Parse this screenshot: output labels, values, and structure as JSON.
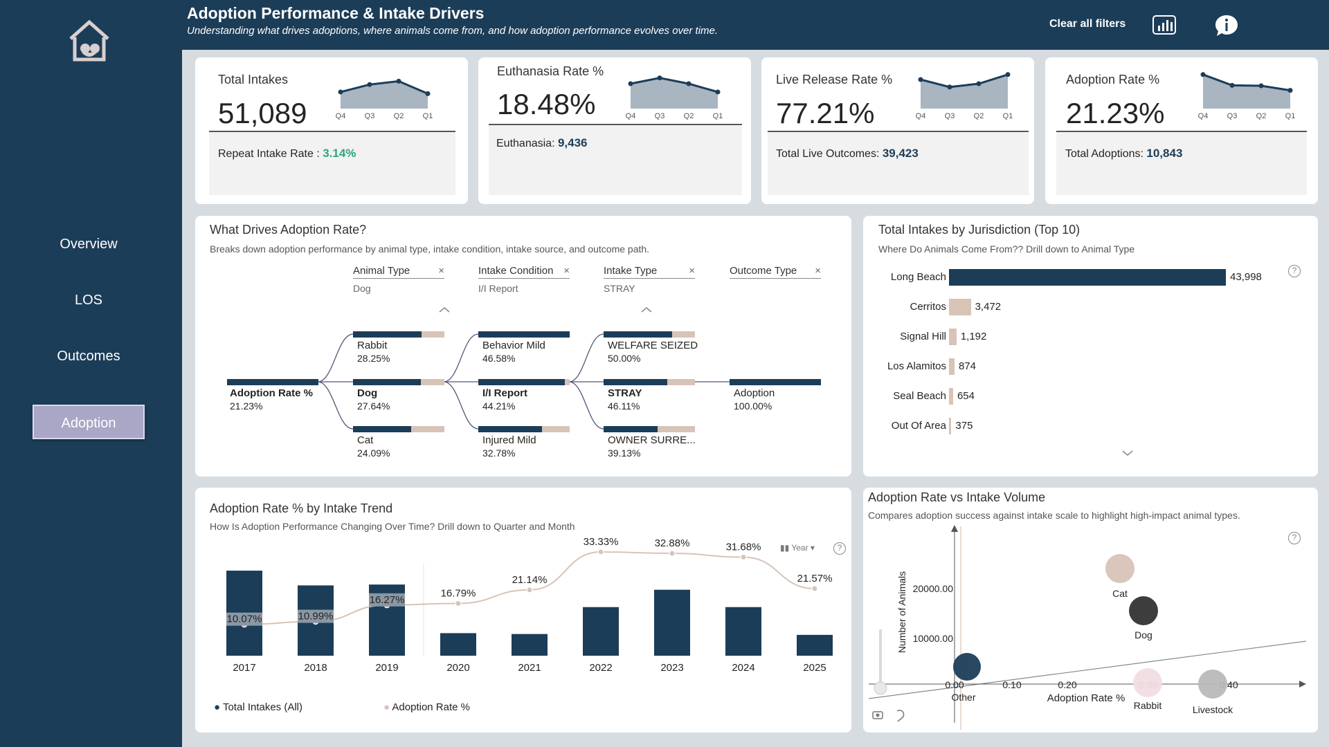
{
  "sidebar": {
    "items": [
      {
        "label": "Overview"
      },
      {
        "label": "LOS"
      },
      {
        "label": "Outcomes"
      },
      {
        "label": "Adoption"
      }
    ]
  },
  "header": {
    "title": "Adoption Performance & Intake Drivers",
    "subtitle": "Understanding what drives adoptions, where animals come from, and how adoption performance evolves over time.",
    "clear_filters": "Clear all filters"
  },
  "kpis": [
    {
      "label": "Total Intakes",
      "value": "51,089",
      "foot_label": "Repeat Intake Rate : ",
      "foot_value": "3.14%",
      "spark_labels": [
        "Q4",
        "Q3",
        "Q2",
        "Q1"
      ],
      "spark_values": [
        40,
        58,
        66,
        36
      ]
    },
    {
      "label": "Euthanasia Rate %",
      "value": "18.48%",
      "foot_label": "Euthanasia: ",
      "foot_value": "9,436",
      "spark_labels": [
        "Q4",
        "Q3",
        "Q2",
        "Q1"
      ],
      "spark_values": [
        60,
        74,
        60,
        40
      ]
    },
    {
      "label": "Live Release Rate %",
      "value": "77.21%",
      "foot_label": "Total Live Outcomes: ",
      "foot_value": "39,423",
      "spark_labels": [
        "Q4",
        "Q3",
        "Q2",
        "Q1"
      ],
      "spark_values": [
        70,
        52,
        60,
        82
      ]
    },
    {
      "label": "Adoption Rate %",
      "value": "21.23%",
      "foot_label": "Total Adoptions: ",
      "foot_value": "10,843",
      "spark_labels": [
        "Q4",
        "Q3",
        "Q2",
        "Q1"
      ],
      "spark_values": [
        82,
        56,
        55,
        44
      ]
    }
  ],
  "decomp": {
    "title": "What Drives Adoption Rate?",
    "subtitle": "Breaks down adoption performance by animal type, intake condition, intake source, and outcome path.",
    "headers": [
      {
        "label": "Animal Type",
        "value": "Dog"
      },
      {
        "label": "Intake Condition",
        "value": "I/I Report"
      },
      {
        "label": "Intake Type",
        "value": "STRAY"
      },
      {
        "label": "Outcome Type",
        "value": ""
      }
    ],
    "root": {
      "name": "Adoption Rate %",
      "value": "21.23%",
      "pct": 1.0
    },
    "col1": [
      {
        "name": "Rabbit",
        "value": "28.25%",
        "pct": 0.75
      },
      {
        "name": "Dog",
        "value": "27.64%",
        "pct": 0.74
      },
      {
        "name": "Cat",
        "value": "24.09%",
        "pct": 0.64
      }
    ],
    "col2": [
      {
        "name": "Behavior Mild",
        "value": "46.58%",
        "pct": 1.0
      },
      {
        "name": "I/I Report",
        "value": "44.21%",
        "pct": 0.95
      },
      {
        "name": "Injured Mild",
        "value": "32.78%",
        "pct": 0.7
      }
    ],
    "col3": [
      {
        "name": "WELFARE SEIZED",
        "value": "50.00%",
        "pct": 0.75
      },
      {
        "name": "STRAY",
        "value": "46.11%",
        "pct": 0.7
      },
      {
        "name": "OWNER SURRE...",
        "value": "39.13%",
        "pct": 0.59
      }
    ],
    "col4": [
      {
        "name": "Adoption",
        "value": "100.00%",
        "pct": 1.0
      }
    ]
  },
  "jurisdiction": {
    "title": "Total Intakes by Jurisdiction (Top 10)",
    "subtitle": "Where Do Animals Come From?? Drill down to Animal Type",
    "rows": [
      {
        "label": "Long Beach",
        "value": 43998,
        "display": "43,998",
        "color": "#1c3d58"
      },
      {
        "label": "Cerritos",
        "value": 3472,
        "display": "3,472",
        "color": "#d8c3b7"
      },
      {
        "label": "Signal Hill",
        "value": 1192,
        "display": "1,192",
        "color": "#d8c3b7"
      },
      {
        "label": "Los Alamitos",
        "value": 874,
        "display": "874",
        "color": "#d8c3b7"
      },
      {
        "label": "Seal Beach",
        "value": 654,
        "display": "654",
        "color": "#d8c3b7"
      },
      {
        "label": "Out Of Area",
        "value": 375,
        "display": "375",
        "color": "#d8c3b7"
      }
    ]
  },
  "trend": {
    "title": "Adoption Rate % by Intake Trend",
    "subtitle": "How Is Adoption Performance Changing Over Time? Drill down to Quarter and Month",
    "year_label": "Year",
    "legend": [
      "Total Intakes (All)",
      "Adoption Rate %"
    ]
  },
  "scatter": {
    "title": "Adoption Rate vs Intake Volume",
    "subtitle": "Compares adoption success against intake scale to highlight high-impact animal types."
  },
  "chart_data": [
    {
      "type": "bar",
      "categories": [
        "2017",
        "2018",
        "2019",
        "2020",
        "2021",
        "2022",
        "2023",
        "2024",
        "2025"
      ],
      "series": [
        {
          "name": "Total Intakes (All)",
          "values": [
            9800,
            8100,
            8200,
            2600,
            2500,
            5600,
            7600,
            5600,
            2400
          ]
        },
        {
          "name": "Adoption Rate %",
          "values": [
            10.07,
            10.99,
            16.27,
            16.79,
            21.14,
            33.33,
            32.88,
            31.68,
            21.57
          ],
          "labels": [
            "10.07%",
            "10.99%",
            "16.27%",
            "16.79%",
            "21.14%",
            "33.33%",
            "32.88%",
            "31.68%",
            "21.57%"
          ]
        }
      ],
      "xlabel": "",
      "ylabel": ""
    },
    {
      "type": "scatter",
      "xlabel": "Adoption Rate %",
      "ylabel": "Number of Animals",
      "x_ticks": [
        "0.00",
        "0.10",
        "0.20",
        "0.30",
        "0.40"
      ],
      "y_ticks": [
        "10000.00",
        "20000.00"
      ],
      "xlim": [
        0,
        0.5
      ],
      "points": [
        {
          "name": "Cat",
          "x": 0.24,
          "y": 23500,
          "color": "#d8c3b7"
        },
        {
          "name": "Dog",
          "x": 0.28,
          "y": 15000,
          "color": "#333333"
        },
        {
          "name": "Other",
          "x": 0.01,
          "y": 2500,
          "color": "#1c3d58"
        },
        {
          "name": "Rabbit",
          "x": 0.28,
          "y": 400,
          "color": "#f1dde3"
        },
        {
          "name": "Livestock",
          "x": 0.4,
          "y": 200,
          "color": "#b9b9b9"
        }
      ]
    }
  ]
}
